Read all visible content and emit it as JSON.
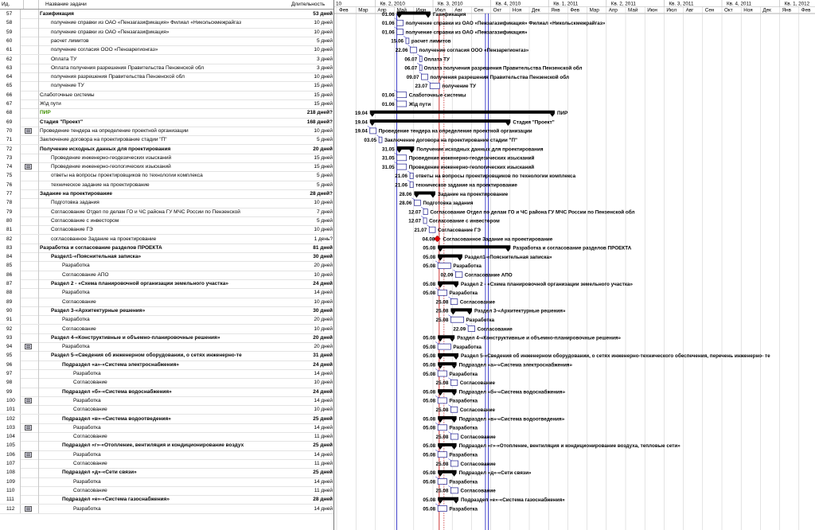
{
  "header": {
    "id_label": "Ид.",
    "info_icon": "i",
    "name_label": "Название задачи",
    "duration_label": "Длительность"
  },
  "timescale": {
    "top": [
      "10",
      "Кв. 2, 2010",
      "Кв. 3, 2010",
      "Кв. 4, 2010",
      "Кв. 1, 2011",
      "Кв. 2, 2011",
      "Кв. 3, 2011",
      "Кв. 4, 2011",
      "Кв. 1, 2012"
    ],
    "months": [
      "Фев",
      "Мар",
      "Апр",
      "Май",
      "Июн",
      "Июл",
      "Авг",
      "Сен",
      "Окт",
      "Ноя",
      "Дек",
      "Янв",
      "Фев",
      "Мар",
      "Апр",
      "Май",
      "Июн",
      "Июл",
      "Авг",
      "Сен",
      "Окт",
      "Ноя",
      "Дек",
      "Янв",
      "Фев"
    ]
  },
  "tasks": [
    {
      "id": "57",
      "name": "Газификация",
      "dur": "53 дней",
      "level": 2,
      "summary": true,
      "icon": false,
      "date": "01.06",
      "start": 3.0,
      "end": 4.75,
      "label": "Газификация"
    },
    {
      "id": "58",
      "name": "получение справки из ОАО «Пензагазификация» Филиал «Никольскмежрайгаз",
      "dur": "10 дней",
      "level": 3,
      "date": "01.06",
      "start": 3.0,
      "end": 3.33,
      "label": "получение справки из ОАО «Пензагазификация» Филиал «Никольскмежрайгаз»"
    },
    {
      "id": "59",
      "name": "получение справки из ОАО «Пензагазификация»",
      "dur": "10 дней",
      "level": 3,
      "date": "01.06",
      "start": 3.0,
      "end": 3.33,
      "label": "получение справки из ОАО «Пензагазификация»"
    },
    {
      "id": "60",
      "name": "расчет лимитов",
      "dur": "5 дней",
      "level": 3,
      "date": "15.06",
      "start": 3.47,
      "end": 3.63,
      "label": "расчет лимитов"
    },
    {
      "id": "61",
      "name": "получение согласия ООО «Пензарегионгаз»",
      "dur": "10 дней",
      "level": 3,
      "date": "22.06",
      "start": 3.7,
      "end": 4.03,
      "label": "получение согласия ООО «Пензарегионгаз»"
    },
    {
      "id": "62",
      "name": "Оплата ТУ",
      "dur": "3 дней",
      "level": 3,
      "date": "06.07",
      "start": 4.18,
      "end": 4.28,
      "label": "Оплата ТУ"
    },
    {
      "id": "63",
      "name": "Оплата получения разрешения Правительства Пензенской обл",
      "dur": "3 дней",
      "level": 3,
      "date": "06.07",
      "start": 4.18,
      "end": 4.28,
      "label": "Оплата получения разрешения Правительства Пензенской обл"
    },
    {
      "id": "64",
      "name": "получения разрешения Правительства Пензенской обл",
      "dur": "10 дней",
      "level": 3,
      "date": "09.07",
      "start": 4.28,
      "end": 4.61,
      "label": "получения разрешения Правительства Пензенской обл"
    },
    {
      "id": "65",
      "name": "получение ТУ",
      "dur": "15 дней",
      "level": 3,
      "date": "23.07",
      "start": 4.72,
      "end": 5.22,
      "label": "получение ТУ"
    },
    {
      "id": "66",
      "name": "Слаботочные системы",
      "dur": "15 дней",
      "level": 2,
      "date": "01.06",
      "start": 3.0,
      "end": 3.5,
      "label": "Слаботочные системы"
    },
    {
      "id": "67",
      "name": "Ж\\д пути",
      "dur": "15 дней",
      "level": 2,
      "date": "01.06",
      "start": 3.0,
      "end": 3.5,
      "label": "Ж\\д пути"
    },
    {
      "id": "68",
      "name": "ПИР",
      "dur": "218 дней?",
      "level": 1,
      "summary": true,
      "green": true,
      "date": "19.04",
      "start": 1.6,
      "end": 11.2,
      "label": "ПИР"
    },
    {
      "id": "69",
      "name": "Стадия \"Проект\"",
      "dur": "168 дней?",
      "level": 1,
      "summary": true,
      "date": "19.04",
      "start": 1.6,
      "end": 8.9,
      "label": "Стадия \"Проект\""
    },
    {
      "id": "70",
      "name": "Проведение тендера на определение проектной организации",
      "dur": "10 дней",
      "level": 2,
      "icon": true,
      "date": "19.04",
      "start": 1.6,
      "end": 1.93,
      "label": "Проведение тендера на определение проектной организации"
    },
    {
      "id": "71",
      "name": "Заключение договора на проектирование  стадии \"П\"",
      "dur": "5 дней",
      "level": 2,
      "date": "03.05",
      "start": 2.07,
      "end": 2.23,
      "label": "Заключение договора на проектирование  стадии \"П\""
    },
    {
      "id": "72",
      "name": "Получение исходных данных для проектирования",
      "dur": "20 дней",
      "level": 2,
      "summary": true,
      "date": "31.05",
      "start": 3.0,
      "end": 3.9,
      "label": "Получение исходных данных для проектирования"
    },
    {
      "id": "73",
      "name": "Проведение инженерно-геодезических изысканий",
      "dur": "15 дней",
      "level": 3,
      "date": "31.05",
      "start": 3.0,
      "end": 3.5,
      "label": "Проведение инженерно-геодезических изысканий"
    },
    {
      "id": "74",
      "name": "Проведение инженерно-геологических изысканий",
      "dur": "15 дней",
      "level": 3,
      "icon": true,
      "date": "31.05",
      "start": 3.0,
      "end": 3.5,
      "label": "Проведение инженерно-геологических изысканий"
    },
    {
      "id": "75",
      "name": "ответы на вопросы проектировщиков по технологии комплекса",
      "dur": "5 дней",
      "level": 3,
      "date": "21.06",
      "start": 3.68,
      "end": 3.85,
      "label": "ответы на вопросы проектировщиков по технологии комплекса"
    },
    {
      "id": "76",
      "name": "техническое задание на проектирование",
      "dur": "5 дней",
      "level": 3,
      "date": "21.06",
      "start": 3.68,
      "end": 3.85,
      "label": "техническое задание на проектирование"
    },
    {
      "id": "77",
      "name": "Задание на проектирование",
      "dur": "28 дней?",
      "level": 2,
      "summary": true,
      "date": "28.06",
      "start": 3.9,
      "end": 5.0,
      "label": "Задание на проектирование"
    },
    {
      "id": "78",
      "name": "Подготовка задания",
      "dur": "10 дней",
      "level": 3,
      "date": "28.06",
      "start": 3.9,
      "end": 4.23,
      "label": "Подготовка задания"
    },
    {
      "id": "79",
      "name": "Согласование Отдел по делам ГО и ЧС района ГУ МЧС России по Пензенской",
      "dur": "7 дней",
      "level": 3,
      "date": "12.07",
      "start": 4.38,
      "end": 4.6,
      "label": "Согласование Отдел по делам ГО и ЧС района ГУ МЧС России по Пензенской обл"
    },
    {
      "id": "80",
      "name": "Согласование с инвестором",
      "dur": "5 дней",
      "level": 3,
      "date": "12.07",
      "start": 4.38,
      "end": 4.55,
      "label": "Согласование с инвестором"
    },
    {
      "id": "81",
      "name": "Согласование ГЭ",
      "dur": "10 дней",
      "level": 3,
      "date": "21.07",
      "start": 4.68,
      "end": 5.0,
      "label": "Согласование ГЭ"
    },
    {
      "id": "82",
      "name": "согласованное Задание на проектирование",
      "dur": "1 день?",
      "level": 3,
      "date": "04.08",
      "start": 5.1,
      "end": 5.13,
      "label": "Согласованное Задание на проектирование",
      "milestone": true
    },
    {
      "id": "83",
      "name": "Разработка и согласование разделов ПРОЕКТА",
      "dur": "81 дней",
      "level": 2,
      "summary": true,
      "date": "05.08",
      "start": 5.13,
      "end": 8.9,
      "label": "Разработка и согласование разделов ПРОЕКТА"
    },
    {
      "id": "84",
      "name": "Раздел1-«Пояснительная записка»",
      "dur": "30 дней",
      "level": 3,
      "summary": true,
      "date": "05.08",
      "start": 5.13,
      "end": 6.4,
      "label": "Раздел1-«Пояснительная записка»"
    },
    {
      "id": "85",
      "name": "Разработка",
      "dur": "20 дней",
      "level": 4,
      "date": "05.08",
      "start": 5.13,
      "end": 5.8,
      "label": "Разработка"
    },
    {
      "id": "86",
      "name": "Согласование АПО",
      "dur": "10 дней",
      "level": 4,
      "date": "02.09",
      "start": 6.05,
      "end": 6.4,
      "label": "Согласование АПО"
    },
    {
      "id": "87",
      "name": "Раздел 2 - «Схема планировочной организации земельного участка»",
      "dur": "24 дней",
      "level": 3,
      "summary": true,
      "date": "05.08",
      "start": 5.13,
      "end": 6.2,
      "label": "Раздел 2 - «Схема планировочной организации земельного участка»"
    },
    {
      "id": "88",
      "name": "Разработка",
      "dur": "14 дней",
      "level": 4,
      "date": "05.08",
      "start": 5.13,
      "end": 5.6,
      "label": "Разработка"
    },
    {
      "id": "89",
      "name": "Согласование",
      "dur": "10 дней",
      "level": 4,
      "date": "25.08",
      "start": 5.8,
      "end": 6.15,
      "label": "Согласование"
    },
    {
      "id": "90",
      "name": "Раздел 3-«Архитектурные решения»",
      "dur": "30 дней",
      "level": 3,
      "summary": true,
      "date": "25.08",
      "start": 5.8,
      "end": 6.9,
      "label": "Раздел 3-«Архитектурные решения»"
    },
    {
      "id": "91",
      "name": "Разработка",
      "dur": "20 дней",
      "level": 4,
      "date": "25.08",
      "start": 5.8,
      "end": 6.47,
      "label": "Разработка"
    },
    {
      "id": "92",
      "name": "Согласование",
      "dur": "10 дней",
      "level": 4,
      "date": "22.09",
      "start": 6.7,
      "end": 7.05,
      "label": "Согласование"
    },
    {
      "id": "93",
      "name": "Раздел 4-«Конструктивные и объемно-планировочные решения»",
      "dur": "20 дней",
      "level": 3,
      "summary": true,
      "date": "05.08",
      "start": 5.13,
      "end": 6.0,
      "label": "Раздел 4-«Конструктивные и объемно-планировочные решения»"
    },
    {
      "id": "94",
      "name": "Разработка",
      "dur": "20 дней",
      "level": 4,
      "icon": true,
      "date": "05.08",
      "start": 5.13,
      "end": 5.8,
      "label": "Разработка"
    },
    {
      "id": "95",
      "name": "Раздел 5-«Сведения об инженерном оборудовании, о сетях инженерно-те",
      "dur": "31 дней",
      "level": 3,
      "summary": true,
      "date": "05.08",
      "start": 5.13,
      "end": 6.2,
      "label": "Раздел 5-«Сведения об инженерном оборудовании, о сетях инженерно-технического обеспечения, перечень инженерно- те"
    },
    {
      "id": "96",
      "name": "Подраздел «а»-«Система электроснабжения»",
      "dur": "24 дней",
      "level": 4,
      "summary": true,
      "date": "05.08",
      "start": 5.13,
      "end": 6.1,
      "label": "Подраздел «а»-«Система электроснабжения»"
    },
    {
      "id": "97",
      "name": "Разработка",
      "dur": "14 дней",
      "level": 5,
      "date": "05.08",
      "start": 5.13,
      "end": 5.6,
      "label": "Разработка"
    },
    {
      "id": "98",
      "name": "Согласование",
      "dur": "10 дней",
      "level": 5,
      "date": "25.08",
      "start": 5.8,
      "end": 6.15,
      "label": "Согласование"
    },
    {
      "id": "99",
      "name": "Подраздел «б»-«Система водоснабжения»",
      "dur": "24 дней",
      "level": 4,
      "summary": true,
      "date": "05.08",
      "start": 5.13,
      "end": 6.1,
      "label": "Подраздел «б»-«Система водоснабжения»"
    },
    {
      "id": "100",
      "name": "Разработка",
      "dur": "14 дней",
      "level": 5,
      "icon": true,
      "date": "05.08",
      "start": 5.13,
      "end": 5.6,
      "label": "Разработка"
    },
    {
      "id": "101",
      "name": "Согласование",
      "dur": "10 дней",
      "level": 5,
      "date": "25.08",
      "start": 5.8,
      "end": 6.15,
      "label": "Согласование"
    },
    {
      "id": "102",
      "name": "Подраздел «в»-«Система водоотведения»",
      "dur": "25 дней",
      "level": 4,
      "summary": true,
      "date": "05.08",
      "start": 5.13,
      "end": 6.1,
      "label": "Подраздел «в»-«Система водоотведения»"
    },
    {
      "id": "103",
      "name": "Разработка",
      "dur": "14 дней",
      "level": 5,
      "icon": true,
      "date": "05.08",
      "start": 5.13,
      "end": 5.6,
      "label": "Разработка"
    },
    {
      "id": "104",
      "name": "Согласование",
      "dur": "11 дней",
      "level": 5,
      "date": "25.08",
      "start": 5.8,
      "end": 6.18,
      "label": "Согласование"
    },
    {
      "id": "105",
      "name": "Подраздел «г»-«Отопление, вентиляция и кондиционирование воздух",
      "dur": "25 дней",
      "level": 4,
      "summary": true,
      "date": "05.08",
      "start": 5.13,
      "end": 6.1,
      "label": "Подраздел «г»-«Отопление, вентиляция и кондиционирование воздуха, тепловые сети»"
    },
    {
      "id": "106",
      "name": "Разработка",
      "dur": "14 дней",
      "level": 5,
      "icon": true,
      "date": "05.08",
      "start": 5.13,
      "end": 5.6,
      "label": "Разработка"
    },
    {
      "id": "107",
      "name": "Согласование",
      "dur": "11 дней",
      "level": 5,
      "date": "25.08",
      "start": 5.8,
      "end": 6.18,
      "label": "Согласование"
    },
    {
      "id": "108",
      "name": "Подраздел «д»-«Сети связи»",
      "dur": "25 дней",
      "level": 4,
      "summary": true,
      "date": "05.08",
      "start": 5.13,
      "end": 6.1,
      "label": "Подраздел «д»-«Сети связи»"
    },
    {
      "id": "109",
      "name": "Разработка",
      "dur": "14 дней",
      "level": 5,
      "date": "05.08",
      "start": 5.13,
      "end": 5.6,
      "label": "Разработка"
    },
    {
      "id": "110",
      "name": "Согласование",
      "dur": "11 дней",
      "level": 5,
      "date": "25.08",
      "start": 5.8,
      "end": 6.18,
      "label": "Согласование"
    },
    {
      "id": "111",
      "name": "Подраздел «е»-«Система газоснабжения»",
      "dur": "28 дней",
      "level": 4,
      "summary": true,
      "date": "05.08",
      "start": 5.13,
      "end": 6.2,
      "label": "Подраздел «е»-«Система газоснабжения»"
    },
    {
      "id": "112",
      "name": "Разработка",
      "dur": "14 дней",
      "level": 5,
      "icon": true,
      "date": "05.08",
      "start": 5.13,
      "end": 5.6,
      "label": "Разработка"
    }
  ],
  "colors": {
    "bar_outline": "#1f1f8f",
    "summary_bar": "#000000",
    "milestone": "#e00000",
    "link_line": "#1515c0",
    "status_line": "#c00000",
    "grid_line": "#c8c8c8",
    "green_text": "#3f8f00"
  }
}
